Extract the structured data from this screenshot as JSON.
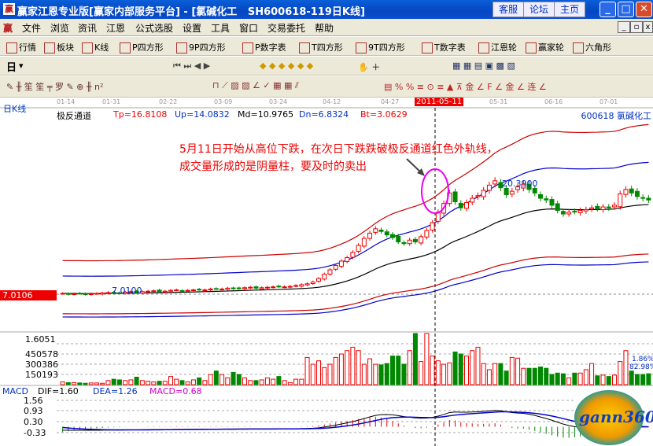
{
  "window": {
    "title": "赢家江恩专业版[赢家内部服务平台] - [氯碱化工   SH600618-119日K线]",
    "buttons": [
      "客服",
      "论坛",
      "主页"
    ]
  },
  "menu": [
    "文件",
    "浏览",
    "资讯",
    "江恩",
    "公式选股",
    "设置",
    "工具",
    "窗口",
    "交易委托",
    "帮助"
  ],
  "toolbar1": [
    {
      "icon": "table-icon",
      "label": "行情"
    },
    {
      "icon": "blocks-icon",
      "label": "板块"
    },
    {
      "icon": "kline-icon",
      "label": "K线"
    },
    {
      "icon": "ps-icon",
      "label": "P四方形"
    },
    {
      "icon": "p9-icon",
      "label": "9P四方形"
    },
    {
      "icon": "pn-icon",
      "label": "P数字表"
    },
    {
      "icon": "ts-icon",
      "label": "T四方形"
    },
    {
      "icon": "t9-icon",
      "label": "9T四方形"
    },
    {
      "icon": "tn-icon",
      "label": "T数字表"
    },
    {
      "icon": "wheel-icon",
      "label": "江恩轮"
    },
    {
      "icon": "big-icon",
      "label": "赢家轮"
    },
    {
      "icon": "hexagon-icon",
      "label": "六角形"
    }
  ],
  "toolbar2": {
    "period": "日"
  },
  "chart": {
    "period_label": "日K线",
    "dates": [
      "01-14",
      "01-31",
      "02-22",
      "03-09",
      "03-24",
      "04-12",
      "04-27",
      "2011-05-11",
      "05-31",
      "06-16",
      "07-01"
    ],
    "indicator": {
      "name": "极反通道",
      "Tp": "Tp=16.8108",
      "Up": "Up=14.0832",
      "Md": "Md=10.9765",
      "Dn": "Dn=6.8324",
      "Bt": "Bt=3.0629"
    },
    "stock": "600618  氯碱化工",
    "price_marker": "7.0106",
    "high_label": "20.3900",
    "low_label": "7.0100",
    "annotation": [
      "5月11日开始从高位下跌，在次日下跌跌破极反通道红色外轨线，",
      "成交量形成的是阴量柱，要及时的卖出"
    ],
    "volume_axis": [
      "1.6051",
      "450578",
      "300386",
      "150193"
    ],
    "volume_pct": [
      "1.86%",
      "82.98%"
    ],
    "macd": {
      "label": "MACD",
      "dif": "DIF=1.60",
      "dea": "DEA=1.26",
      "macd": "MACD=0.68",
      "axis": [
        "1.56",
        "0.93",
        "0.30",
        "-0.33"
      ]
    },
    "logo": "gann360"
  },
  "chart_data": {
    "type": "candlestick",
    "close": [
      7.1,
      7.0,
      7.05,
      7.1,
      7.0,
      7.05,
      7.1,
      7.15,
      7.2,
      7.1,
      7.15,
      7.25,
      7.3,
      7.2,
      7.3,
      7.35,
      7.4,
      7.3,
      7.35,
      7.45,
      7.5,
      7.4,
      7.45,
      7.5,
      7.55,
      7.5,
      7.6,
      7.65,
      7.6,
      7.7,
      7.65,
      7.7,
      7.75,
      7.8,
      7.7,
      7.75,
      7.8,
      7.85,
      7.9,
      7.85,
      7.9,
      8.0,
      8.1,
      8.2,
      8.4,
      8.8,
      9.3,
      9.8,
      10.3,
      10.8,
      11.2,
      11.8,
      12.6,
      13.4,
      14.0,
      14.5,
      14.2,
      13.8,
      13.5,
      13.0,
      12.8,
      13.2,
      13.0,
      13.6,
      14.3,
      15.2,
      16.4,
      17.4,
      18.6,
      17.6,
      16.9,
      17.5,
      18.0,
      18.3,
      18.9,
      19.5,
      20.0,
      19.2,
      18.4,
      18.8,
      19.3,
      19.6,
      19.0,
      18.6,
      18.0,
      17.8,
      17.2,
      16.6,
      16.2,
      16.4,
      16.5,
      16.6,
      16.7,
      16.9,
      16.8,
      17.0,
      16.9,
      17.2,
      18.5,
      19.0,
      18.6,
      18.2,
      18.0,
      17.8
    ],
    "volume": [
      40000,
      30000,
      30000,
      25000,
      20000,
      25000,
      25000,
      20000,
      60000,
      80000,
      70000,
      60000,
      70000,
      110000,
      60000,
      50000,
      40000,
      50000,
      50000,
      120000,
      80000,
      60000,
      40000,
      70000,
      100000,
      60000,
      150000,
      200000,
      150000,
      100000,
      180000,
      150000,
      100000,
      60000,
      60000,
      70000,
      100000,
      80000,
      120000,
      60000,
      30000,
      80000,
      80000,
      400000,
      300000,
      350000,
      250000,
      300000,
      400000,
      450000,
      500000,
      550000,
      500000,
      300000,
      380000,
      300000,
      290000,
      310000,
      420000,
      420000,
      300000,
      500000,
      1605100,
      340000,
      1605100,
      420000,
      350000,
      300000,
      320000,
      480000,
      450000,
      420000,
      500000,
      550000,
      310000,
      220000,
      310000,
      310000,
      200000,
      400000,
      390000,
      240000,
      240000,
      240000,
      260000,
      240000,
      150000,
      170000,
      160000,
      100000,
      170000,
      170000,
      220000,
      310000,
      130000,
      140000,
      120000,
      140000,
      340000,
      500000,
      200000,
      150000,
      150000,
      160000
    ],
    "price_range": [
      2,
      22
    ],
    "volume_range": [
      0,
      600000
    ],
    "macd_range": [
      -0.6,
      1.9
    ]
  }
}
